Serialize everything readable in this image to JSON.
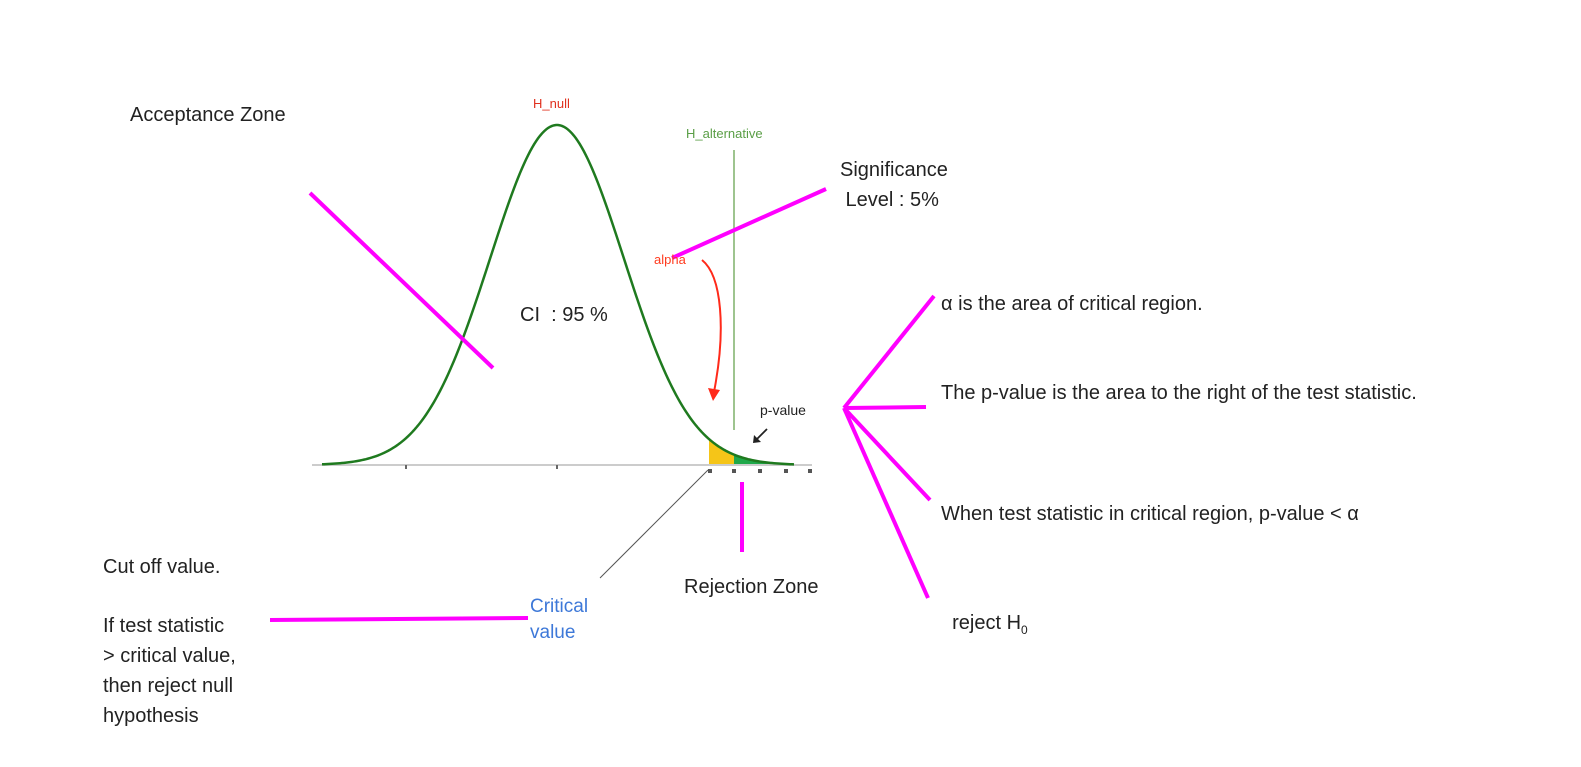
{
  "labels": {
    "acceptance_zone": "Acceptance Zone",
    "h_null": "H_null",
    "h_alternative": "H_alternative",
    "significance_line1": "Significance",
    "significance_line2": " Level : 5%",
    "alpha": "alpha",
    "ci": "CI  : 95 %",
    "p_value": "p-value",
    "rejection_zone": "Rejection Zone",
    "critical_value_line1": "Critical",
    "critical_value_line2": "value",
    "cutoff_title": "Cut off value.",
    "cutoff_body": [
      "If test statistic",
      "> critical value,",
      "then reject null",
      "hypothesis"
    ]
  },
  "notes": {
    "alpha_area": "α is the area of critical region.",
    "p_value_area": "The p-value is the area to the right of the test statistic.",
    "when_in_region": "When test statistic in critical region, p-value < α",
    "reject_prefix": "reject H",
    "reject_subscript": "0"
  },
  "colors": {
    "curve": "#1f7a1f",
    "annotation_magenta": "#ff00ff",
    "alpha_red": "#ff3b1f",
    "h_null_red": "#e0301e",
    "h_alt_green": "#5a9e46",
    "critical_blue": "#3d78d8",
    "alpha_fill": "#f5c518",
    "p_value_fill": "#1fa84a",
    "axis_gray": "#cccccc"
  }
}
